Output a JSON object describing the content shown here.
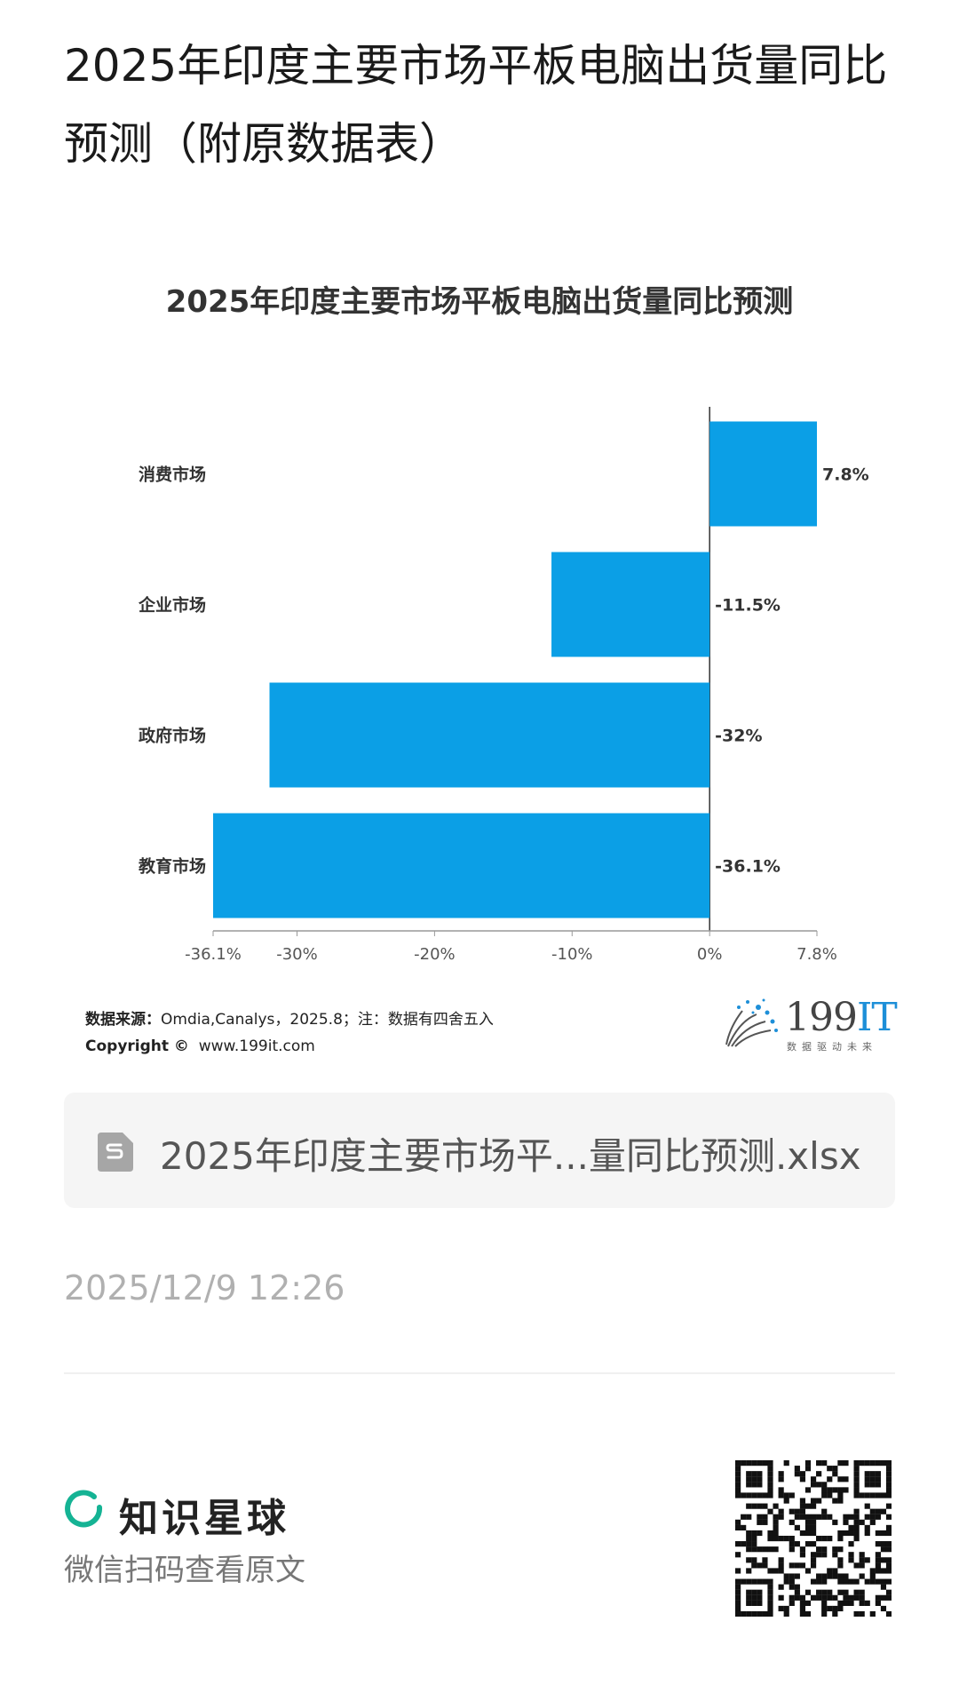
{
  "page_title": "2025年印度主要市场平板电脑出货量同比预测（附原数据表）",
  "chart_data": {
    "type": "bar",
    "orientation": "horizontal",
    "title": "2025年印度主要市场平板电脑出货量同比预测",
    "categories": [
      "消费市场",
      "企业市场",
      "政府市场",
      "教育市场"
    ],
    "values": [
      7.8,
      -11.5,
      -32,
      -36.1
    ],
    "value_labels": [
      "7.8%",
      "-11.5%",
      "-32%",
      "-36.1%"
    ],
    "xlim": [
      -36.1,
      7.8
    ],
    "xticks": [
      -36.1,
      -30,
      -20,
      -10,
      0,
      7.8
    ],
    "xtick_labels": [
      "-36.1%",
      "-30%",
      "-20%",
      "-10%",
      "0%",
      "7.8%"
    ],
    "bar_color": "#0b9fe6",
    "grid": false,
    "legend": "none"
  },
  "source": {
    "label": "数据来源：",
    "text": "Omdia,Canalys，2025.8；注：数据有四舍五入",
    "copyright_label": "Copyright ©",
    "copyright_site": "www.199it.com"
  },
  "logo": {
    "digits": "199",
    "it": "IT",
    "tagline": "数据驱动未来"
  },
  "file": {
    "name": "2025年印度主要市场平...量同比预测.xlsx",
    "icon": "spreadsheet-file-icon"
  },
  "timestamp": "2025/12/9 12:26",
  "brand": {
    "name": "知识星球",
    "description": "微信扫码查看原文",
    "accent": "#15b394"
  },
  "qr_code": {
    "icon": "qr-code-icon"
  }
}
